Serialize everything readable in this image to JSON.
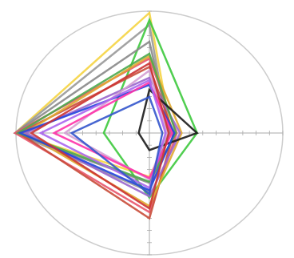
{
  "chart_data": {
    "type": "radar",
    "title": "",
    "axes": [
      "top",
      "right",
      "bottom",
      "left"
    ],
    "axis_orientation": {
      "top": "up",
      "right": "right",
      "bottom": "down",
      "left": "left"
    },
    "range": [
      0,
      1
    ],
    "grid": false,
    "legend": "none",
    "background": "#ffffff",
    "outline_color": "#cccccc",
    "axis_color": "#aaaaaa",
    "series": [
      {
        "color": "#f5d442",
        "values": [
          1.0,
          0.27,
          0.36,
          1.0
        ]
      },
      {
        "color": "#999999",
        "values": [
          0.9,
          0.24,
          0.48,
          1.0
        ]
      },
      {
        "color": "#3dc93d",
        "values": [
          0.94,
          0.59,
          0.53,
          0.34
        ]
      },
      {
        "color": "#888888",
        "values": [
          0.76,
          0.26,
          0.41,
          1.0
        ]
      },
      {
        "color": "#e8556b",
        "values": [
          0.62,
          0.34,
          0.65,
          1.0
        ]
      },
      {
        "color": "#c94c3a",
        "values": [
          0.55,
          0.3,
          0.7,
          0.97
        ]
      },
      {
        "color": "#e0a830",
        "values": [
          0.64,
          0.4,
          0.6,
          0.93
        ]
      },
      {
        "color": "#9966cc",
        "values": [
          0.46,
          0.38,
          0.52,
          0.92
        ]
      },
      {
        "color": "#4ca84c",
        "values": [
          0.66,
          0.33,
          0.4,
          0.98
        ]
      },
      {
        "color": "#1a1a1a",
        "values": [
          0.36,
          0.59,
          0.14,
          0.08
        ]
      },
      {
        "color": "#2244dd",
        "values": [
          0.4,
          0.31,
          0.47,
          0.96
        ]
      },
      {
        "color": "#d4a0d4",
        "values": [
          0.52,
          0.22,
          0.38,
          0.63
        ]
      },
      {
        "color": "#ff33aa",
        "values": [
          0.42,
          0.28,
          0.37,
          0.71
        ]
      },
      {
        "color": "#cc3333",
        "values": [
          0.58,
          0.24,
          0.62,
          0.88
        ]
      },
      {
        "color": "#aa66ee",
        "values": [
          0.44,
          0.2,
          0.45,
          0.81
        ]
      },
      {
        "color": "#3355cc",
        "values": [
          0.3,
          0.16,
          0.5,
          0.58
        ]
      }
    ]
  }
}
